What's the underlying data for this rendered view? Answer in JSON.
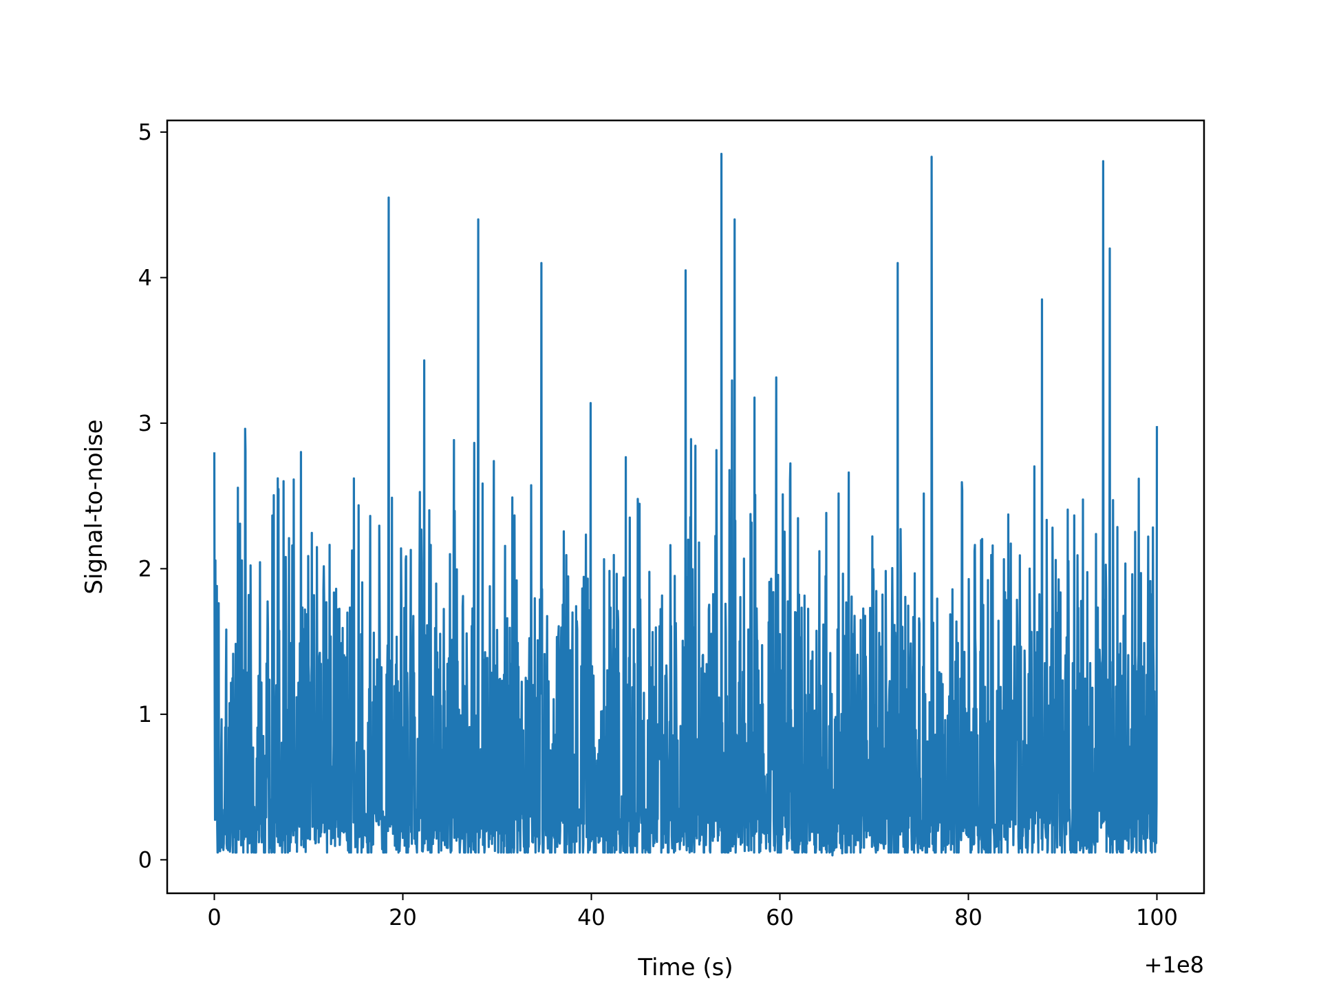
{
  "chart_data": {
    "type": "line",
    "title": "",
    "xlabel": "Time (s)",
    "ylabel": "Signal-to-noise",
    "x_offset_label": "+1e8",
    "xlim": [
      -5,
      105
    ],
    "ylim": [
      -0.23,
      5.08
    ],
    "xticks": [
      0,
      20,
      40,
      60,
      80,
      100
    ],
    "xtick_labels": [
      "0",
      "20",
      "40",
      "60",
      "80",
      "100"
    ],
    "yticks": [
      0,
      1,
      2,
      3,
      4,
      5
    ],
    "ytick_labels": [
      "0",
      "1",
      "2",
      "3",
      "4",
      "5"
    ],
    "grid": false,
    "line_color": "#1f77b4",
    "series": [
      {
        "x": [
          0.0,
          18.5,
          28.0,
          34.7,
          50.0,
          53.8,
          55.2,
          72.5,
          76.1,
          94.3,
          95.0,
          100.0
        ],
        "y": [
          2.8,
          4.55,
          4.4,
          4.1,
          4.05,
          4.85,
          4.4,
          4.1,
          4.83,
          4.8,
          4.2,
          2.98
        ]
      }
    ],
    "noise_band": {
      "x_start": 0.0,
      "x_end": 100.0,
      "typical_floor": 0.05,
      "typical_ceiling": 3.1
    }
  }
}
